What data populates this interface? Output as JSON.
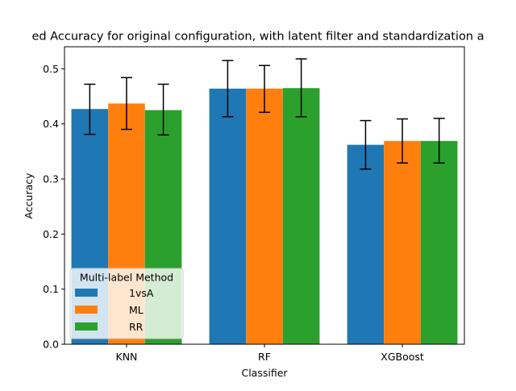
{
  "chart_data": {
    "type": "bar",
    "title": "ed Accuracy for original configuration, with latent filter and standardization a",
    "xlabel": "Classifier",
    "ylabel": "Accuracy",
    "categories": [
      "KNN",
      "RF",
      "XGBoost"
    ],
    "ylim": [
      0,
      0.54
    ],
    "yticks": [
      0.0,
      0.1,
      0.2,
      0.3,
      0.4,
      0.5
    ],
    "ytick_labels": [
      "0.0",
      "0.1",
      "0.2",
      "0.3",
      "0.4",
      "0.5"
    ],
    "grid": false,
    "legend": {
      "title": "Multi-label Method",
      "placement": "lower-left"
    },
    "series": [
      {
        "name": "1vsA",
        "color": "#1f77b4",
        "values": [
          0.427,
          0.464,
          0.362
        ],
        "err_low": [
          0.381,
          0.413,
          0.318
        ],
        "err_high": [
          0.472,
          0.515,
          0.406
        ]
      },
      {
        "name": "ML",
        "color": "#ff7f0e",
        "values": [
          0.437,
          0.464,
          0.369
        ],
        "err_low": [
          0.39,
          0.421,
          0.329
        ],
        "err_high": [
          0.484,
          0.506,
          0.409
        ]
      },
      {
        "name": "RR",
        "color": "#2ca02c",
        "values": [
          0.425,
          0.465,
          0.369
        ],
        "err_low": [
          0.38,
          0.413,
          0.329
        ],
        "err_high": [
          0.472,
          0.518,
          0.41
        ]
      }
    ]
  }
}
